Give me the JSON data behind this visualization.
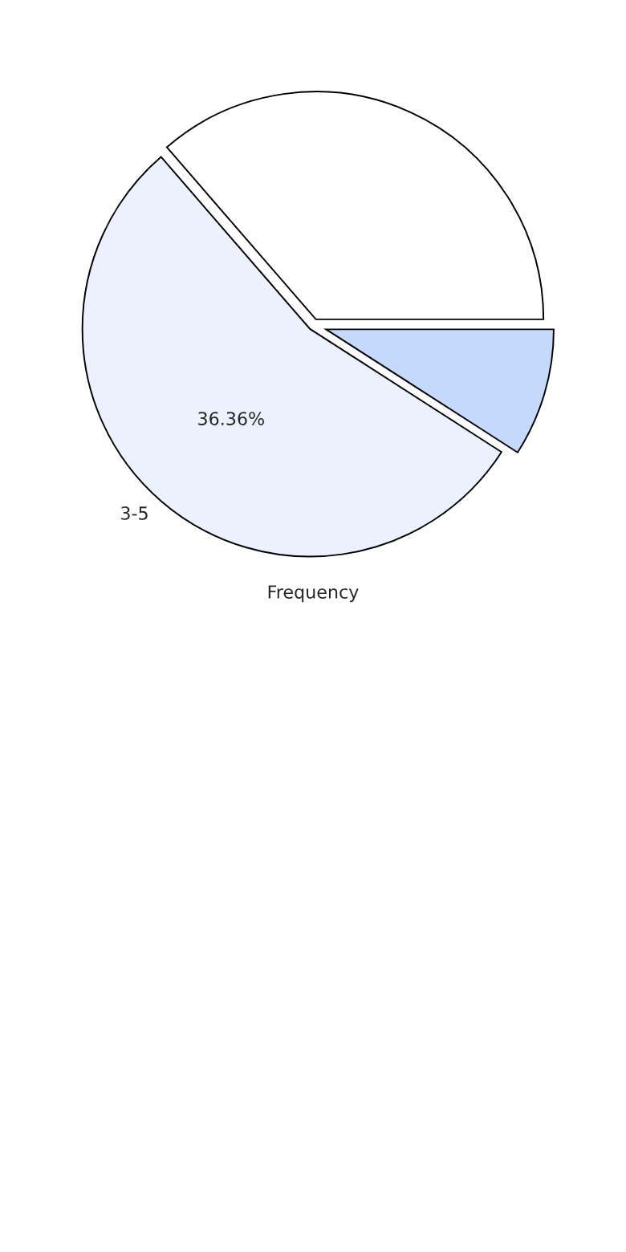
{
  "chart_data": {
    "type": "pie",
    "xlabel": "Frequency",
    "categories": [
      null,
      "3-5",
      null
    ],
    "values": [
      36.36,
      54.55,
      9.09
    ],
    "colors": [
      "#ffffff",
      "#ebf1fd",
      "#c5d9fd"
    ],
    "annotations": [
      "36.36%"
    ]
  }
}
